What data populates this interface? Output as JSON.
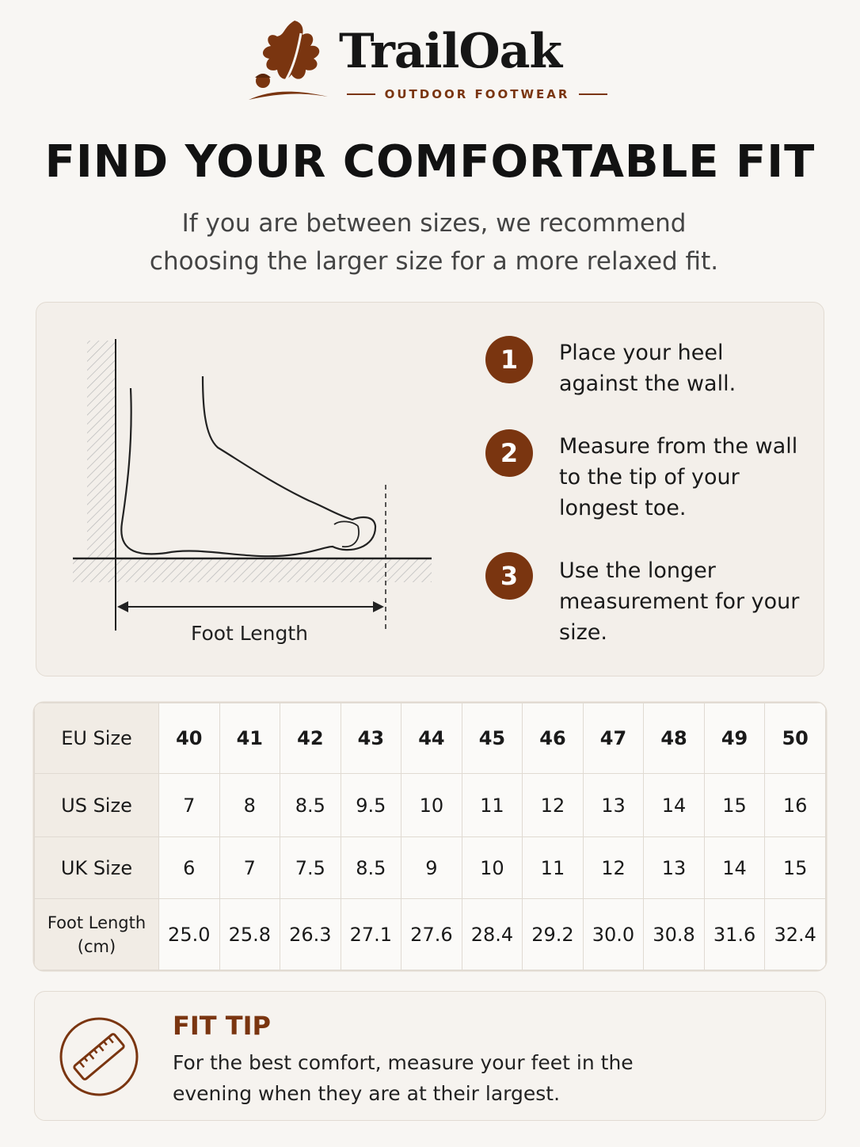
{
  "brand": {
    "name": "TrailOak",
    "tagline": "OUTDOOR FOOTWEAR"
  },
  "header": {
    "title": "FIND YOUR COMFORTABLE FIT",
    "subtitle": "If you are between sizes, we recommend choosing the larger size for a more relaxed fit."
  },
  "diagram": {
    "label": "Foot Length"
  },
  "steps": [
    {
      "number": "1",
      "text": "Place your heel against the wall."
    },
    {
      "number": "2",
      "text": "Measure from the wall to the tip of your longest toe."
    },
    {
      "number": "3",
      "text": "Use the longer measurement for your size."
    }
  ],
  "table": {
    "rows": [
      [
        "EU Size",
        "40",
        "41",
        "42",
        "43",
        "44",
        "45",
        "46",
        "47",
        "48",
        "49",
        "50"
      ],
      [
        "US Size",
        "7",
        "8",
        "8.5",
        "9.5",
        "10",
        "11",
        "12",
        "13",
        "14",
        "15",
        "16"
      ],
      [
        "UK Size",
        "6",
        "7",
        "7.5",
        "8.5",
        "9",
        "10",
        "11",
        "12",
        "13",
        "14",
        "15"
      ],
      [
        "Foot Length (cm)",
        "25.0",
        "25.8",
        "26.3",
        "27.1",
        "27.6",
        "28.4",
        "29.2",
        "30.0",
        "30.8",
        "31.6",
        "32.4"
      ]
    ]
  },
  "tip": {
    "title": "FIT TIP",
    "text": "For the best comfort, measure your feet in the evening when they are at their largest."
  }
}
